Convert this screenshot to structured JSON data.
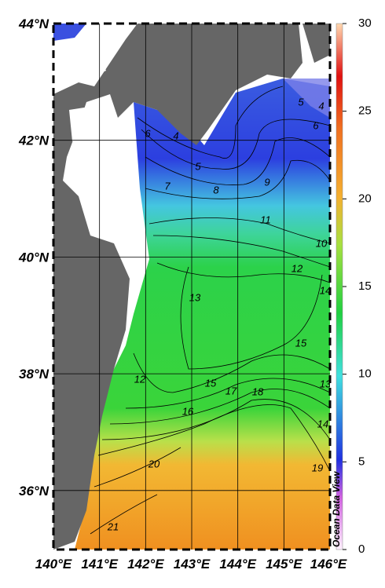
{
  "map": {
    "lat_labels": [
      "44°N",
      "42°N",
      "40°N",
      "38°N",
      "36°N"
    ],
    "lon_labels": [
      "140°E",
      "141°E",
      "142°E",
      "143°E",
      "144°E",
      "145°E",
      "146°E"
    ],
    "colorbar": {
      "range": [
        0,
        30
      ],
      "ticks": [
        0,
        5,
        10,
        15,
        20,
        25,
        30
      ]
    },
    "contour_labels": [
      "4",
      "5",
      "4",
      "6",
      "6",
      "5",
      "7",
      "8",
      "9",
      "11",
      "10",
      "12",
      "14",
      "13",
      "15",
      "12",
      "13",
      "15",
      "17",
      "18",
      "16",
      "14",
      "20",
      "19",
      "21"
    ],
    "credit": "Ocean Data View"
  }
}
